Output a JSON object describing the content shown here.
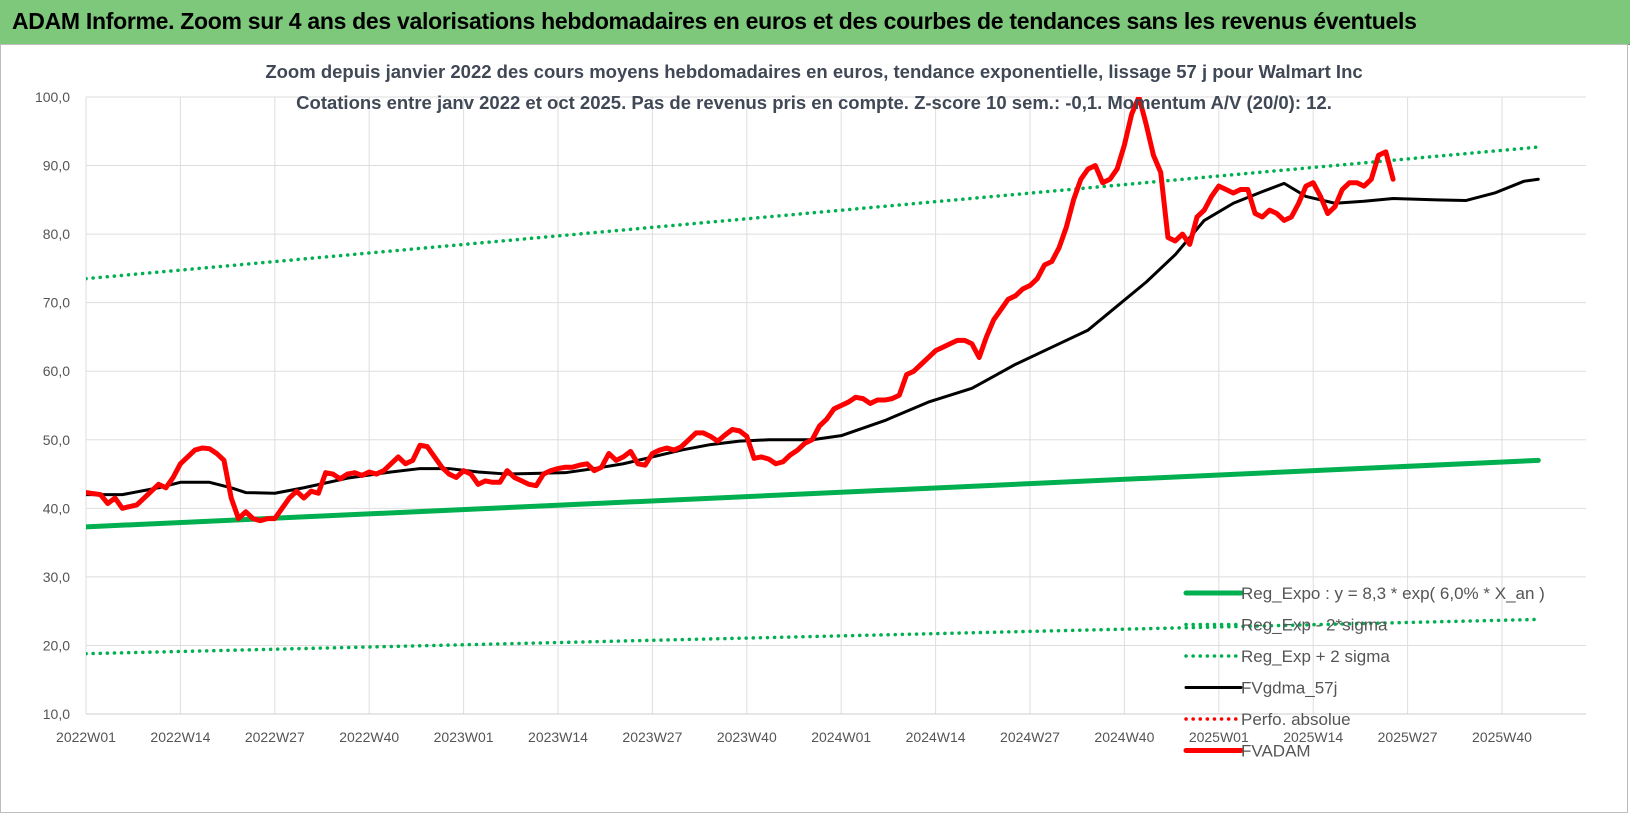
{
  "banner": {
    "title": "ADAM Informe. Zoom sur 4 ans des valorisations hebdomadaires en euros et des courbes de tendances sans les revenus éventuels"
  },
  "chart_data": {
    "type": "line",
    "title": "Zoom depuis janvier 2022 des cours moyens hebdomadaires en euros, tendance exponentielle, lissage 57 j pour Walmart Inc",
    "subtitle": "Cotations entre janv 2022 et oct 2025. Pas de revenus pris en compte. Z-score 10 sem.: -0,1. Momentum A/V (20/0): 12.",
    "y_ticks": [
      "10,0",
      "20,0",
      "30,0",
      "40,0",
      "50,0",
      "60,0",
      "70,0",
      "80,0",
      "90,0",
      "100,0"
    ],
    "ylim": [
      10,
      100
    ],
    "x_ticks": [
      "2022W01",
      "2022W14",
      "2022W27",
      "2022W40",
      "2023W01",
      "2023W14",
      "2023W27",
      "2023W40",
      "2024W01",
      "2024W14",
      "2024W27",
      "2024W40",
      "2025W01",
      "2025W14",
      "2025W27",
      "2025W40"
    ],
    "x_tick_index": [
      0,
      13,
      26,
      39,
      52,
      65,
      78,
      91,
      104,
      117,
      130,
      143,
      156,
      169,
      182,
      195
    ],
    "n_weeks": 201,
    "grid": true,
    "legend_position": "bottom-right",
    "series": [
      {
        "name": "Reg_Expo : y = 8,3 * exp( 6,0% *  X_an )",
        "style": "solid-thick",
        "color": "#00b050",
        "points": [
          [
            0,
            37.3
          ],
          [
            200,
            47.0
          ]
        ]
      },
      {
        "name": "Reg_Exp - 2*sigma",
        "style": "dotted",
        "color": "#00b050",
        "points": [
          [
            0,
            18.8
          ],
          [
            200,
            23.8
          ]
        ]
      },
      {
        "name": "Reg_Exp + 2 sigma",
        "style": "dotted",
        "color": "#00b050",
        "points": [
          [
            0,
            73.5
          ],
          [
            200,
            92.7
          ]
        ]
      },
      {
        "name": "FVgdma_57j",
        "style": "solid",
        "color": "#000000",
        "points": [
          [
            0,
            42.0
          ],
          [
            5,
            42.0
          ],
          [
            10,
            43.0
          ],
          [
            13,
            43.8
          ],
          [
            17,
            43.8
          ],
          [
            20,
            43.0
          ],
          [
            22,
            42.3
          ],
          [
            26,
            42.2
          ],
          [
            30,
            43.0
          ],
          [
            36,
            44.4
          ],
          [
            42,
            45.3
          ],
          [
            46,
            45.8
          ],
          [
            50,
            45.8
          ],
          [
            54,
            45.3
          ],
          [
            58,
            45.0
          ],
          [
            62,
            45.1
          ],
          [
            66,
            45.2
          ],
          [
            70,
            45.8
          ],
          [
            74,
            46.5
          ],
          [
            78,
            47.5
          ],
          [
            82,
            48.5
          ],
          [
            86,
            49.3
          ],
          [
            90,
            49.8
          ],
          [
            94,
            50.0
          ],
          [
            100,
            50.0
          ],
          [
            104,
            50.6
          ],
          [
            110,
            52.8
          ],
          [
            116,
            55.5
          ],
          [
            122,
            57.5
          ],
          [
            128,
            61.0
          ],
          [
            134,
            64.0
          ],
          [
            138,
            66.0
          ],
          [
            142,
            69.5
          ],
          [
            146,
            73.0
          ],
          [
            150,
            77.0
          ],
          [
            154,
            82.0
          ],
          [
            158,
            84.5
          ],
          [
            162,
            86.2
          ],
          [
            165,
            87.4
          ],
          [
            168,
            85.5
          ],
          [
            172,
            84.5
          ],
          [
            176,
            84.8
          ],
          [
            180,
            85.2
          ],
          [
            186,
            85.0
          ],
          [
            190,
            84.9
          ],
          [
            194,
            86.0
          ],
          [
            198,
            87.7
          ],
          [
            200,
            88.0
          ]
        ]
      },
      {
        "name": "Perfo. absolue",
        "style": "dotted",
        "color": "#ff0000",
        "points": []
      },
      {
        "name": "FVADAM",
        "style": "solid-thick",
        "color": "#ff0000",
        "points": [
          [
            0,
            42.3
          ],
          [
            2,
            42.0
          ],
          [
            3,
            40.7
          ],
          [
            4,
            41.5
          ],
          [
            5,
            40.0
          ],
          [
            7,
            40.5
          ],
          [
            9,
            42.5
          ],
          [
            10,
            43.5
          ],
          [
            11,
            43.0
          ],
          [
            12,
            44.5
          ],
          [
            13,
            46.5
          ],
          [
            15,
            48.5
          ],
          [
            16,
            48.8
          ],
          [
            17,
            48.7
          ],
          [
            18,
            48.0
          ],
          [
            19,
            47.0
          ],
          [
            20,
            41.5
          ],
          [
            21,
            38.5
          ],
          [
            22,
            39.5
          ],
          [
            23,
            38.5
          ],
          [
            24,
            38.2
          ],
          [
            25,
            38.5
          ],
          [
            26,
            38.5
          ],
          [
            27,
            40.0
          ],
          [
            28,
            41.5
          ],
          [
            29,
            42.5
          ],
          [
            30,
            41.5
          ],
          [
            31,
            42.5
          ],
          [
            32,
            42.2
          ],
          [
            33,
            45.2
          ],
          [
            34,
            45.0
          ],
          [
            35,
            44.3
          ],
          [
            36,
            45.0
          ],
          [
            37,
            45.2
          ],
          [
            38,
            44.8
          ],
          [
            39,
            45.3
          ],
          [
            40,
            45.0
          ],
          [
            41,
            45.5
          ],
          [
            42,
            46.5
          ],
          [
            43,
            47.5
          ],
          [
            44,
            46.5
          ],
          [
            45,
            47.0
          ],
          [
            46,
            49.2
          ],
          [
            47,
            49.0
          ],
          [
            48,
            47.5
          ],
          [
            49,
            46.0
          ],
          [
            50,
            45.0
          ],
          [
            51,
            44.5
          ],
          [
            52,
            45.5
          ],
          [
            53,
            45.0
          ],
          [
            54,
            43.5
          ],
          [
            55,
            44.0
          ],
          [
            56,
            43.8
          ],
          [
            57,
            43.8
          ],
          [
            58,
            45.5
          ],
          [
            59,
            44.5
          ],
          [
            60,
            44.0
          ],
          [
            61,
            43.5
          ],
          [
            62,
            43.3
          ],
          [
            63,
            45.0
          ],
          [
            64,
            45.5
          ],
          [
            65,
            45.8
          ],
          [
            66,
            46.0
          ],
          [
            67,
            46.0
          ],
          [
            68,
            46.3
          ],
          [
            69,
            46.5
          ],
          [
            70,
            45.5
          ],
          [
            71,
            46.0
          ],
          [
            72,
            48.0
          ],
          [
            73,
            47.0
          ],
          [
            74,
            47.5
          ],
          [
            75,
            48.3
          ],
          [
            76,
            46.5
          ],
          [
            77,
            46.3
          ],
          [
            78,
            48.0
          ],
          [
            79,
            48.5
          ],
          [
            80,
            48.8
          ],
          [
            81,
            48.5
          ],
          [
            82,
            49.0
          ],
          [
            83,
            50.0
          ],
          [
            84,
            51.0
          ],
          [
            85,
            51.0
          ],
          [
            86,
            50.5
          ],
          [
            87,
            49.8
          ],
          [
            88,
            50.7
          ],
          [
            89,
            51.5
          ],
          [
            90,
            51.3
          ],
          [
            91,
            50.5
          ],
          [
            92,
            47.3
          ],
          [
            93,
            47.5
          ],
          [
            94,
            47.2
          ],
          [
            95,
            46.5
          ],
          [
            96,
            46.8
          ],
          [
            97,
            47.8
          ],
          [
            98,
            48.5
          ],
          [
            99,
            49.5
          ],
          [
            100,
            50.0
          ],
          [
            101,
            52.0
          ],
          [
            102,
            53.0
          ],
          [
            103,
            54.5
          ],
          [
            104,
            55.0
          ],
          [
            105,
            55.5
          ],
          [
            106,
            56.2
          ],
          [
            107,
            56.0
          ],
          [
            108,
            55.3
          ],
          [
            109,
            55.8
          ],
          [
            110,
            55.8
          ],
          [
            111,
            56.0
          ],
          [
            112,
            56.5
          ],
          [
            113,
            59.5
          ],
          [
            114,
            60.0
          ],
          [
            115,
            61.0
          ],
          [
            116,
            62.0
          ],
          [
            117,
            63.0
          ],
          [
            118,
            63.5
          ],
          [
            119,
            64.0
          ],
          [
            120,
            64.5
          ],
          [
            121,
            64.5
          ],
          [
            122,
            64.0
          ],
          [
            123,
            62.0
          ],
          [
            124,
            65.0
          ],
          [
            125,
            67.5
          ],
          [
            126,
            69.0
          ],
          [
            127,
            70.5
          ],
          [
            128,
            71.0
          ],
          [
            129,
            72.0
          ],
          [
            130,
            72.5
          ],
          [
            131,
            73.5
          ],
          [
            132,
            75.5
          ],
          [
            133,
            76.0
          ],
          [
            134,
            78.0
          ],
          [
            135,
            81.0
          ],
          [
            136,
            85.0
          ],
          [
            137,
            88.0
          ],
          [
            138,
            89.5
          ],
          [
            139,
            90.0
          ],
          [
            140,
            87.5
          ],
          [
            141,
            88.0
          ],
          [
            142,
            89.5
          ],
          [
            143,
            93.0
          ],
          [
            144,
            97.5
          ],
          [
            145,
            100.0
          ],
          [
            146,
            96.0
          ],
          [
            147,
            91.5
          ],
          [
            148,
            89.0
          ],
          [
            149,
            79.5
          ],
          [
            150,
            79.0
          ],
          [
            151,
            80.0
          ],
          [
            152,
            78.5
          ],
          [
            153,
            82.5
          ],
          [
            154,
            83.5
          ],
          [
            155,
            85.5
          ],
          [
            156,
            87.0
          ],
          [
            157,
            86.5
          ],
          [
            158,
            86.0
          ],
          [
            159,
            86.5
          ],
          [
            160,
            86.5
          ],
          [
            161,
            83.0
          ],
          [
            162,
            82.5
          ],
          [
            163,
            83.5
          ],
          [
            164,
            83.0
          ],
          [
            165,
            82.0
          ],
          [
            166,
            82.5
          ],
          [
            167,
            84.5
          ],
          [
            168,
            87.0
          ],
          [
            169,
            87.5
          ],
          [
            170,
            85.5
          ],
          [
            171,
            83.0
          ],
          [
            172,
            84.0
          ],
          [
            173,
            86.5
          ],
          [
            174,
            87.5
          ],
          [
            175,
            87.5
          ],
          [
            176,
            87.0
          ],
          [
            177,
            88.0
          ],
          [
            178,
            91.5
          ],
          [
            179,
            92.0
          ],
          [
            180,
            88.0
          ]
        ]
      }
    ]
  }
}
